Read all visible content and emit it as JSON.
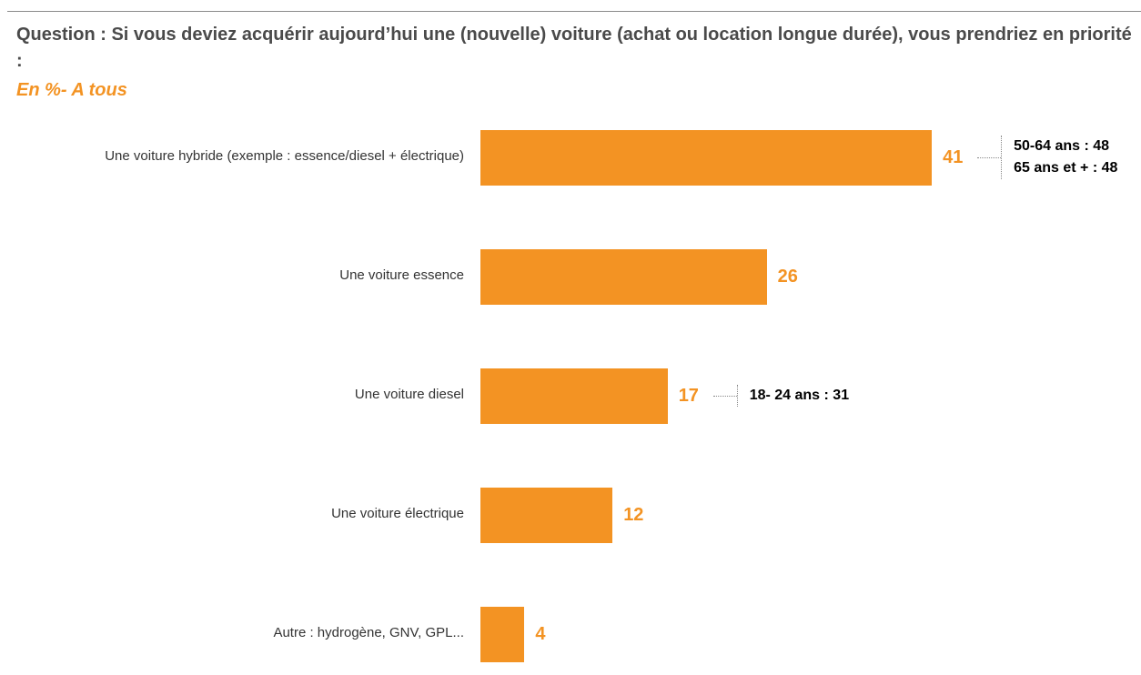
{
  "header": {
    "title": "Question : Si vous deviez acquérir aujourd’hui une (nouvelle) voiture (achat ou location longue durée), vous prendriez en priorité :",
    "subtitle": "En  %-  A tous"
  },
  "chart_data": {
    "type": "bar",
    "orientation": "horizontal",
    "title": "Question : Si vous deviez acquérir aujourd’hui une (nouvelle) voiture (achat ou location longue durée), vous prendriez en priorité :",
    "subtitle": "En  %-  A tous",
    "unit": "%",
    "categories": [
      "Une voiture hybride (exemple : essence/diesel + électrique)",
      "Une voiture essence",
      "Une voiture diesel",
      "Une voiture électrique",
      "Autre : hydrogène, GNV, GPL..."
    ],
    "values": [
      41,
      26,
      17,
      12,
      4
    ],
    "color": "#f39323",
    "annotations": [
      {
        "category_index": 0,
        "lines": [
          "50-64 ans : 48",
          "65 ans et + : 48"
        ]
      },
      {
        "category_index": 2,
        "lines": [
          "18- 24 ans : 31"
        ]
      }
    ]
  }
}
